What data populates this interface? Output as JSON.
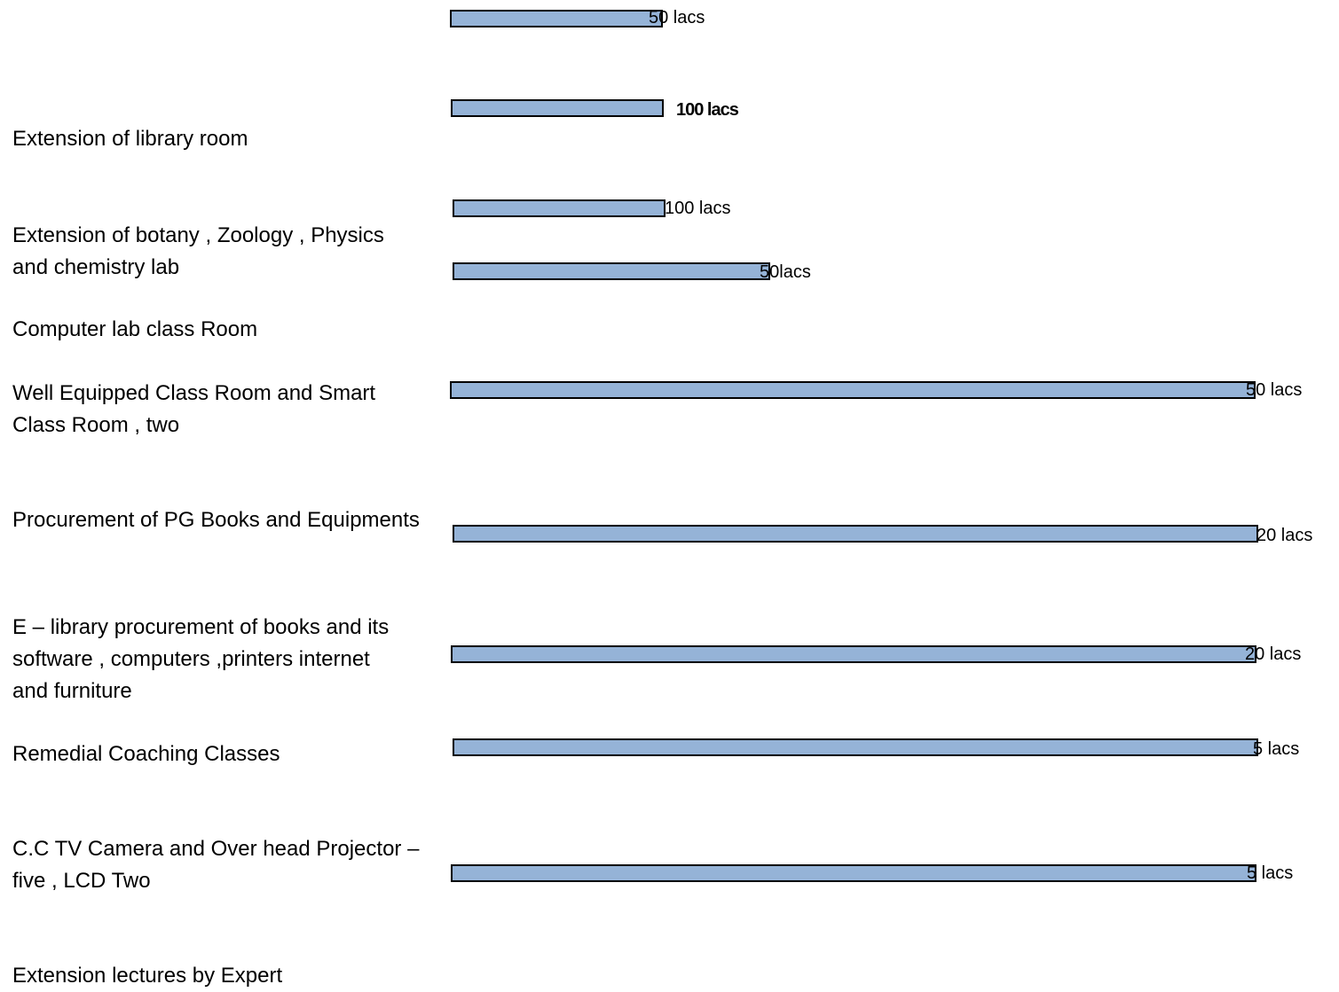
{
  "chart_data": {
    "type": "bar",
    "orientation": "horizontal",
    "bar_color": "#95B3D7",
    "bar_border_color": "#000000",
    "categories": [
      "Extension of library room",
      "Extension of botany , Zoology , Physics\nand chemistry lab",
      "Computer lab class Room",
      "Well Equipped  Class Room and Smart\nClass Room , two",
      "Procurement of PG Books and Equipments",
      "E – library procurement of books  and its\nsoftware , computers ,printers  internet\nand furniture",
      "Remedial Coaching Classes",
      "C.C TV Camera and Over head Projector –\nfive   , LCD Two",
      "Extension lectures by Expert"
    ],
    "bars": [
      {
        "value_label": "50 lacs",
        "bold": false
      },
      {
        "value_label": "100 lacs",
        "bold": true
      },
      {
        "value_label": "100 lacs",
        "bold": false
      },
      {
        "value_label": "50lacs",
        "bold": false
      },
      {
        "value_label": "50 lacs",
        "bold": false
      },
      {
        "value_label": "20 lacs",
        "bold": false
      },
      {
        "value_label": "20 lacs",
        "bold": false
      },
      {
        "value_label": "5 lacs",
        "bold": false
      },
      {
        "value_label": "5 lacs",
        "bold": false
      }
    ]
  }
}
